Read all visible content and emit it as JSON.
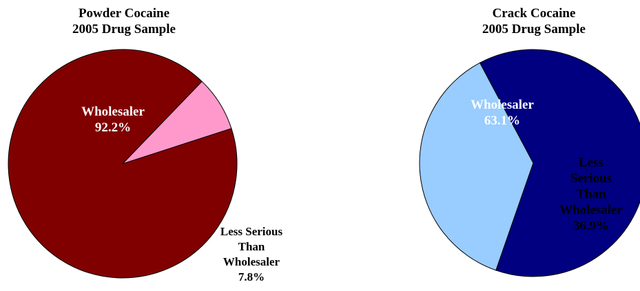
{
  "chart_data": [
    {
      "type": "pie",
      "title": [
        "Powder Cocaine",
        "2005 Drug Sample"
      ],
      "slices": [
        {
          "label": "Wholesaler",
          "value": 92.2,
          "value_label": "92.2%",
          "color": "#800000",
          "label_color": "#ffffff"
        },
        {
          "label": "Less Serious Than Wholesaler",
          "label_lines": [
            "Less Serious",
            "Than",
            "Wholesaler"
          ],
          "value": 7.8,
          "value_label": "7.8%",
          "color": "#ff99cc",
          "label_color": "#000000"
        }
      ]
    },
    {
      "type": "pie",
      "title": [
        "Crack Cocaine",
        "2005 Drug Sample"
      ],
      "slices": [
        {
          "label": "Wholesaler",
          "value": 63.1,
          "value_label": "63.1%",
          "color": "#000080",
          "label_color": "#ffffff"
        },
        {
          "label": "Less Serious Than Wholesaler",
          "label_lines": [
            "Less",
            "Serious",
            "Than",
            "Wholesaler"
          ],
          "value": 36.9,
          "value_label": "36.9%",
          "color": "#99ccff",
          "label_color": "#000000"
        }
      ]
    }
  ]
}
